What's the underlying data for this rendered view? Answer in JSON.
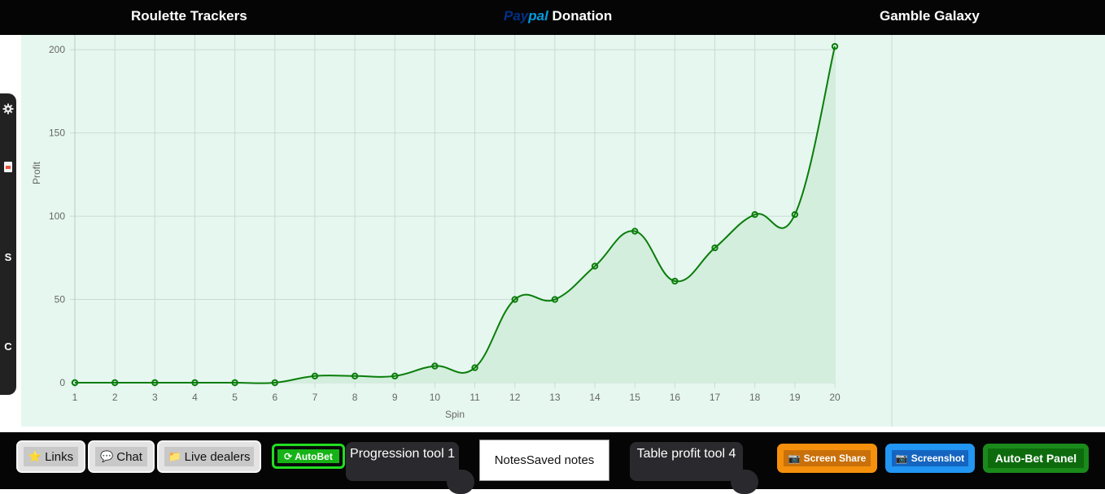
{
  "nav": {
    "roulette": "Roulette Trackers",
    "paypal_part1": "Pay",
    "paypal_part2": "pal",
    "donation": "Donation",
    "galaxy": "Gamble Galaxy"
  },
  "side": {
    "icons": [
      "gear-icon",
      "document-icon"
    ],
    "letter_s": "S",
    "letter_c": "C"
  },
  "chart_data": {
    "type": "line",
    "x": [
      1,
      2,
      3,
      4,
      5,
      6,
      7,
      8,
      9,
      10,
      11,
      12,
      13,
      14,
      15,
      16,
      17,
      18,
      19,
      20
    ],
    "series": [
      {
        "values": [
          0,
          0,
          0,
          0,
          0,
          0,
          4,
          4,
          4,
          10,
          9,
          50,
          50,
          70,
          91,
          61,
          81,
          101,
          101,
          202
        ]
      }
    ],
    "xlabel": "Spin",
    "ylabel": "Profit",
    "ylim": [
      0,
      205
    ],
    "yticks": [
      0,
      50,
      100,
      150,
      200
    ],
    "grid": true,
    "fill": true,
    "colors": {
      "line": "#0a7d0a",
      "fill": "#d3eedd",
      "grid": "#c8dcd2"
    }
  },
  "bottom": {
    "links": "Links",
    "chat": "Chat",
    "live": "Live dealers",
    "autobet": "AutoBet",
    "progression": "Progression tool 1",
    "notes": "NotesSaved notes",
    "table": "Table profit tool 4",
    "share": "Screen Share",
    "screenshot": "Screenshot",
    "panel": "Auto-Bet Panel"
  }
}
